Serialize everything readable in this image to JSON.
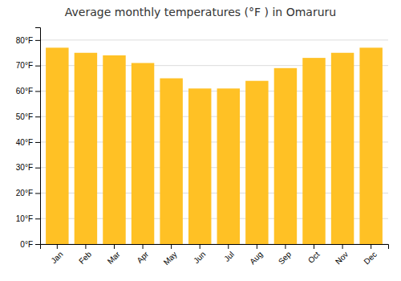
{
  "chart_data": {
    "type": "bar",
    "title": "Average monthly temperatures (°F ) in Omaruru",
    "categories": [
      "Jan",
      "Feb",
      "Mar",
      "Apr",
      "May",
      "Jun",
      "Jul",
      "Aug",
      "Sep",
      "Oct",
      "Nov",
      "Dec"
    ],
    "values": [
      77,
      75,
      74,
      71,
      65,
      61,
      61,
      64,
      69,
      73,
      75,
      77
    ],
    "color": "#FFC125",
    "ylim": [
      0,
      85
    ],
    "yticks": [
      {
        "value": 0,
        "label": "0°F"
      },
      {
        "value": 10,
        "label": "10°F"
      },
      {
        "value": 20,
        "label": "20°F"
      },
      {
        "value": 30,
        "label": "30°F"
      },
      {
        "value": 40,
        "label": "40°F"
      },
      {
        "value": 50,
        "label": "50°F"
      },
      {
        "value": 60,
        "label": "60°F"
      },
      {
        "value": 70,
        "label": "70°F"
      },
      {
        "value": 80,
        "label": "80°F"
      }
    ],
    "grid": true
  }
}
